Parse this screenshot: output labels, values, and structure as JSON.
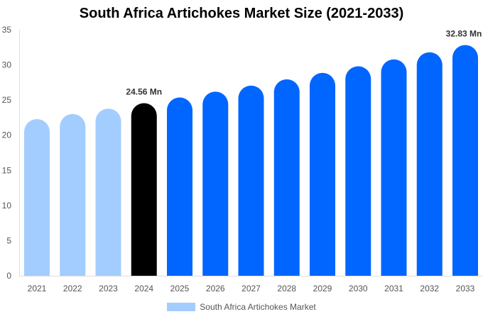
{
  "chart_data": {
    "type": "bar",
    "title": "South Africa Artichokes Market Size (2021-2033)",
    "categories": [
      "2021",
      "2022",
      "2023",
      "2024",
      "2025",
      "2026",
      "2027",
      "2028",
      "2029",
      "2030",
      "2031",
      "2032",
      "2033"
    ],
    "series": [
      {
        "name": "South Africa Artichokes Market",
        "values": [
          22.29,
          23.02,
          23.78,
          24.56,
          25.37,
          26.2,
          27.06,
          27.95,
          28.87,
          29.81,
          30.79,
          31.8,
          32.83
        ]
      }
    ],
    "data_labels": {
      "3": "24.56 Mn",
      "12": "32.83 Mn"
    },
    "ylim": [
      0,
      35
    ],
    "yticks": [
      0,
      5,
      10,
      15,
      20,
      25,
      30,
      35
    ],
    "grid": false,
    "legend": "bottom",
    "colors": {
      "historical": "#a3cdff",
      "base_year": "#000000",
      "forecast": "#0066ff"
    }
  }
}
